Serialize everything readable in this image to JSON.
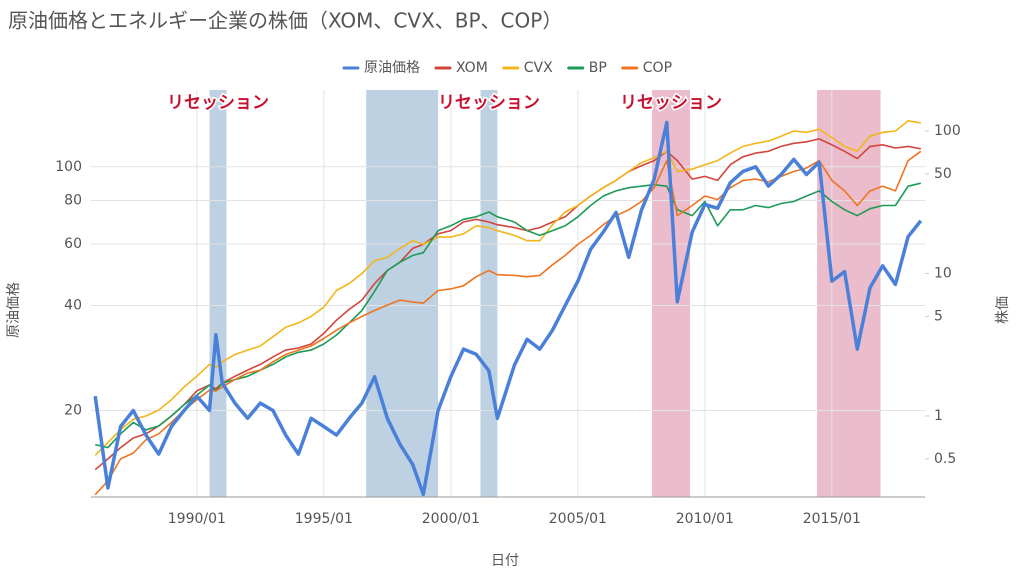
{
  "chart_data": {
    "type": "line",
    "title": "原油価格とエネルギー企業の株価（XOM、CVX、BP、COP）",
    "x_label": "日付",
    "y_label": "原油価格",
    "y2_label": "株価",
    "legend": "top",
    "grid": true,
    "yscale": "log",
    "y2scale": "log",
    "xlim": [
      "1985/11",
      "2018/09"
    ],
    "xticks": [
      "1990/01",
      "1995/01",
      "2000/01",
      "2005/01",
      "2010/01",
      "2015/01"
    ],
    "ylim": [
      11.3,
      166
    ],
    "yticks": [
      20,
      40,
      60,
      80,
      100
    ],
    "y2lim": [
      0.27,
      194
    ],
    "y2ticks": [
      0.5,
      1,
      5,
      10,
      50,
      100
    ],
    "bands": [
      {
        "start": "1990/07",
        "end": "1991/03",
        "color": "#b9cfe2",
        "label": "リセッション"
      },
      {
        "start": "1996/09",
        "end": "1999/07",
        "color": "#b9cfe2"
      },
      {
        "start": "2001/03",
        "end": "2001/11",
        "color": "#b9cfe2",
        "label": "リセッション"
      },
      {
        "start": "2007/12",
        "end": "2009/06",
        "color": "#eab9c9",
        "label": "リセッション"
      },
      {
        "start": "2014/06",
        "end": "2016/12",
        "color": "#eab9c9"
      }
    ],
    "x": [
      "1986/01",
      "1986/07",
      "1987/01",
      "1987/07",
      "1988/01",
      "1988/07",
      "1989/01",
      "1989/07",
      "1990/01",
      "1990/07",
      "1990/10",
      "1991/01",
      "1991/07",
      "1992/01",
      "1992/07",
      "1993/01",
      "1993/07",
      "1994/01",
      "1994/07",
      "1995/01",
      "1995/07",
      "1996/01",
      "1996/07",
      "1997/01",
      "1997/07",
      "1998/01",
      "1998/07",
      "1998/12",
      "1999/07",
      "2000/01",
      "2000/07",
      "2001/01",
      "2001/07",
      "2001/11",
      "2002/07",
      "2003/01",
      "2003/07",
      "2004/01",
      "2004/07",
      "2005/01",
      "2005/07",
      "2006/01",
      "2006/07",
      "2007/01",
      "2007/07",
      "2008/01",
      "2008/07",
      "2008/12",
      "2009/07",
      "2010/01",
      "2010/07",
      "2011/01",
      "2011/07",
      "2012/01",
      "2012/07",
      "2013/01",
      "2013/07",
      "2014/01",
      "2014/07",
      "2015/01",
      "2015/07",
      "2016/01",
      "2016/07",
      "2017/01",
      "2017/07",
      "2018/01",
      "2018/07"
    ],
    "series": [
      {
        "name": "原油価格",
        "color": "#4a80d9",
        "axis": "y",
        "values": [
          22,
          12,
          18,
          20,
          17,
          15,
          18,
          20,
          22,
          20,
          33,
          24,
          21,
          19,
          21,
          20,
          17,
          15,
          19,
          18,
          17,
          19,
          21,
          25,
          19,
          16,
          14,
          11.5,
          20,
          25,
          30,
          29,
          26,
          19,
          27,
          32,
          30,
          34,
          40,
          47,
          58,
          65,
          74,
          55,
          75,
          92,
          134,
          41,
          65,
          78,
          76,
          90,
          97,
          100,
          88,
          95,
          105,
          95,
          103,
          47,
          50,
          30,
          45,
          52,
          46,
          63,
          70
        ]
      },
      {
        "name": "XOM",
        "color": "#d2453a",
        "axis": "y2",
        "values": [
          0.42,
          0.5,
          0.6,
          0.7,
          0.75,
          0.85,
          1.0,
          1.2,
          1.5,
          1.65,
          1.55,
          1.7,
          1.9,
          2.1,
          2.3,
          2.6,
          2.9,
          3.0,
          3.2,
          3.8,
          4.7,
          5.6,
          6.5,
          8.5,
          10.5,
          12,
          15,
          16,
          19,
          20,
          23,
          24,
          23,
          22,
          21,
          20,
          21,
          23,
          25,
          30,
          35,
          40,
          45,
          52,
          57,
          62,
          72,
          62,
          46,
          48,
          45,
          58,
          66,
          70,
          72,
          78,
          82,
          84,
          88,
          80,
          72,
          64,
          78,
          80,
          76,
          78,
          75
        ]
      },
      {
        "name": "CVX",
        "color": "#f2b61c",
        "axis": "y2",
        "values": [
          0.53,
          0.65,
          0.8,
          0.95,
          1.0,
          1.1,
          1.3,
          1.6,
          1.9,
          2.3,
          2.2,
          2.4,
          2.7,
          2.9,
          3.1,
          3.6,
          4.2,
          4.5,
          5.0,
          5.8,
          7.6,
          8.5,
          10,
          12.3,
          13,
          15,
          17,
          16,
          18,
          18,
          19,
          21.6,
          21,
          20,
          18.5,
          17,
          17,
          22,
          27,
          30,
          35,
          40,
          45,
          52,
          60,
          65,
          72,
          52,
          54,
          58,
          62,
          70,
          78,
          82,
          85,
          92,
          100,
          98,
          103,
          90,
          78,
          72,
          92,
          98,
          100,
          118,
          114
        ]
      },
      {
        "name": "BP",
        "color": "#1e9a57",
        "axis": "y2",
        "values": [
          0.63,
          0.6,
          0.75,
          0.9,
          0.8,
          0.85,
          1.0,
          1.2,
          1.4,
          1.65,
          1.5,
          1.7,
          1.8,
          1.9,
          2.1,
          2.3,
          2.6,
          2.8,
          2.9,
          3.2,
          3.7,
          4.5,
          5.5,
          7.5,
          10.5,
          12,
          13.4,
          14,
          20,
          21.6,
          24,
          25,
          27,
          25,
          23,
          20,
          18.5,
          20,
          21.6,
          25,
          30,
          35,
          38,
          40,
          41,
          42,
          41,
          28,
          25.5,
          32,
          21.6,
          28,
          28,
          30,
          29,
          31,
          32,
          35,
          38,
          32,
          28,
          25.5,
          28.5,
          30,
          30,
          41,
          43
        ]
      },
      {
        "name": "COP",
        "color": "#ee7420",
        "axis": "y2",
        "values": [
          0.28,
          0.35,
          0.5,
          0.55,
          0.68,
          0.75,
          0.9,
          1.1,
          1.3,
          1.52,
          1.5,
          1.6,
          1.8,
          2.0,
          2.1,
          2.4,
          2.7,
          2.9,
          3.1,
          3.5,
          4.0,
          4.5,
          5.0,
          5.5,
          6.0,
          6.5,
          6.3,
          6.2,
          7.6,
          7.8,
          8.2,
          9.5,
          10.5,
          9.8,
          9.7,
          9.5,
          9.7,
          11.5,
          13.4,
          16,
          18.5,
          22,
          25.5,
          28,
          32,
          40,
          62,
          25.5,
          30,
          35,
          33,
          40,
          45,
          46,
          44,
          48,
          52,
          55,
          62,
          45,
          38,
          30,
          38,
          41,
          38,
          62,
          72
        ]
      }
    ]
  }
}
